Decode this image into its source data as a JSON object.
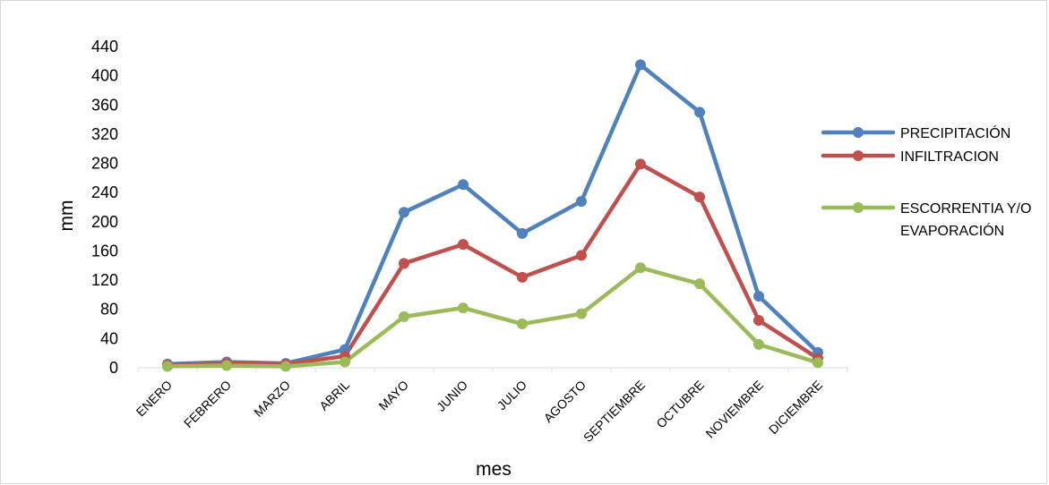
{
  "chart_data": {
    "type": "line",
    "title": "",
    "xlabel": "mes",
    "ylabel": "mm",
    "ylim": [
      0,
      440
    ],
    "yticks": [
      0,
      40,
      80,
      120,
      160,
      200,
      240,
      280,
      320,
      360,
      400,
      440
    ],
    "categories": [
      "ENERO",
      "FEBRERO",
      "MARZO",
      "ABRIL",
      "MAYO",
      "JUNIO",
      "JULIO",
      "AGOSTO",
      "SEPTIEMBRE",
      "OCTUBRE",
      "NOVIEMBRE",
      "DICIEMBRE"
    ],
    "grid": false,
    "legend_position": "right",
    "series": [
      {
        "name": "PRECIPITACIÓN",
        "color": "#4f81bd",
        "values": [
          5,
          8,
          6,
          25,
          213,
          251,
          184,
          228,
          415,
          350,
          98,
          21
        ]
      },
      {
        "name": "INFILTRACION",
        "color": "#c0504d",
        "values": [
          4,
          6,
          5,
          16,
          143,
          169,
          124,
          154,
          279,
          234,
          65,
          13
        ]
      },
      {
        "name": "ESCORRENTIA Y/O EVAPORACIÓN",
        "color": "#9bbb59",
        "values": [
          2,
          3,
          2,
          8,
          70,
          82,
          60,
          74,
          137,
          115,
          32,
          7
        ]
      }
    ],
    "legend_lines": [
      [
        "PRECIPITACIÓN"
      ],
      [
        "INFILTRACION"
      ],
      [
        "ESCORRENTIA Y/O",
        "EVAPORACIÓN"
      ]
    ]
  }
}
